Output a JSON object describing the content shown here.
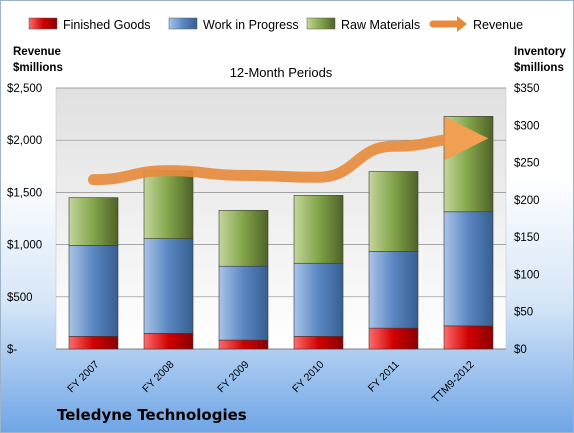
{
  "chart_data": {
    "type": "bar",
    "stacked": true,
    "subtitle": "12-Month Periods",
    "company": "Teledyne Technologies",
    "left_axis_label": [
      "Revenue",
      "$millions"
    ],
    "right_axis_label": [
      "Inventory",
      "$millions"
    ],
    "categories": [
      "FY 2007",
      "FY 2008",
      "FY 2009",
      "FY 2010",
      "FY 2011",
      "TTM9-2012"
    ],
    "left_ylim": [
      0,
      2500
    ],
    "left_ticks": [
      0,
      500,
      1000,
      1500,
      2000,
      2500
    ],
    "left_tick_labels": [
      "$-",
      "$500",
      "$1,000",
      "$1,500",
      "$2,000",
      "$2,500"
    ],
    "right_ylim": [
      0,
      350
    ],
    "right_ticks": [
      0,
      50,
      100,
      150,
      200,
      250,
      300,
      350
    ],
    "right_tick_labels": [
      "$0",
      "$50",
      "$100",
      "$150",
      "$200",
      "$250",
      "$300",
      "$350"
    ],
    "series": [
      {
        "name": "Finished Goods",
        "axis": "right",
        "color": "#c00000",
        "values": [
          17,
          21,
          12,
          17,
          28,
          31
        ]
      },
      {
        "name": "Work in Progress",
        "axis": "right",
        "color": "#4f81bd",
        "values": [
          122,
          127,
          99,
          98,
          103,
          153
        ]
      },
      {
        "name": "Raw Materials",
        "axis": "right",
        "color": "#77933c",
        "values": [
          64,
          91,
          75,
          91,
          107,
          128
        ]
      },
      {
        "name": "Revenue",
        "axis": "left",
        "type": "line",
        "color": "#e46c0a",
        "values": [
          1622,
          1708,
          1663,
          1645,
          1942,
          2017
        ]
      }
    ],
    "grid": true,
    "legend_position": "top"
  }
}
